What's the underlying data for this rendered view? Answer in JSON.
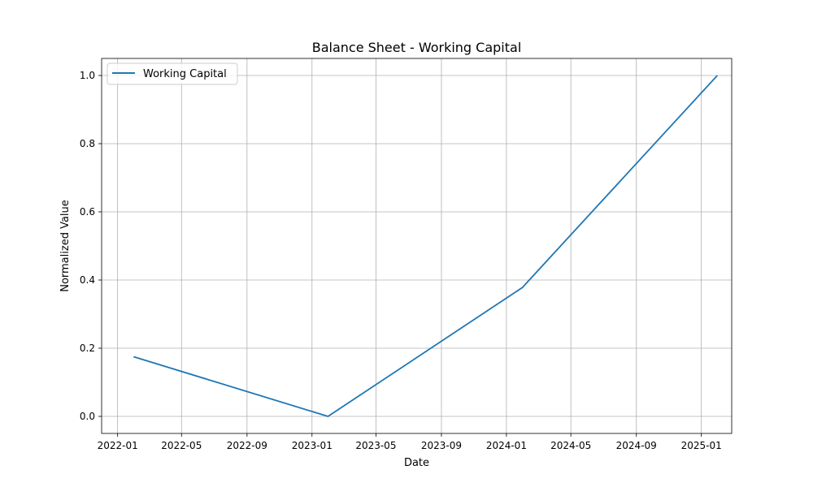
{
  "chart_data": {
    "type": "line",
    "title": "Balance Sheet - Working Capital",
    "xlabel": "Date",
    "ylabel": "Normalized Value",
    "x_ticks": [
      "2022-01",
      "2022-05",
      "2022-09",
      "2023-01",
      "2023-05",
      "2023-09",
      "2024-01",
      "2024-05",
      "2024-09",
      "2025-01"
    ],
    "y_ticks": [
      "0.0",
      "0.2",
      "0.4",
      "0.6",
      "0.8",
      "1.0"
    ],
    "xlim": [
      "2021-12-02",
      "2025-02-27"
    ],
    "ylim": [
      -0.05,
      1.05
    ],
    "grid": true,
    "legend_position": "upper left",
    "series": [
      {
        "name": "Working Capital",
        "color": "#1f77b4",
        "x": [
          "2022-01-31",
          "2023-01-31",
          "2024-01-31",
          "2025-01-31"
        ],
        "y": [
          0.175,
          0.0,
          0.378,
          1.0
        ]
      }
    ]
  }
}
